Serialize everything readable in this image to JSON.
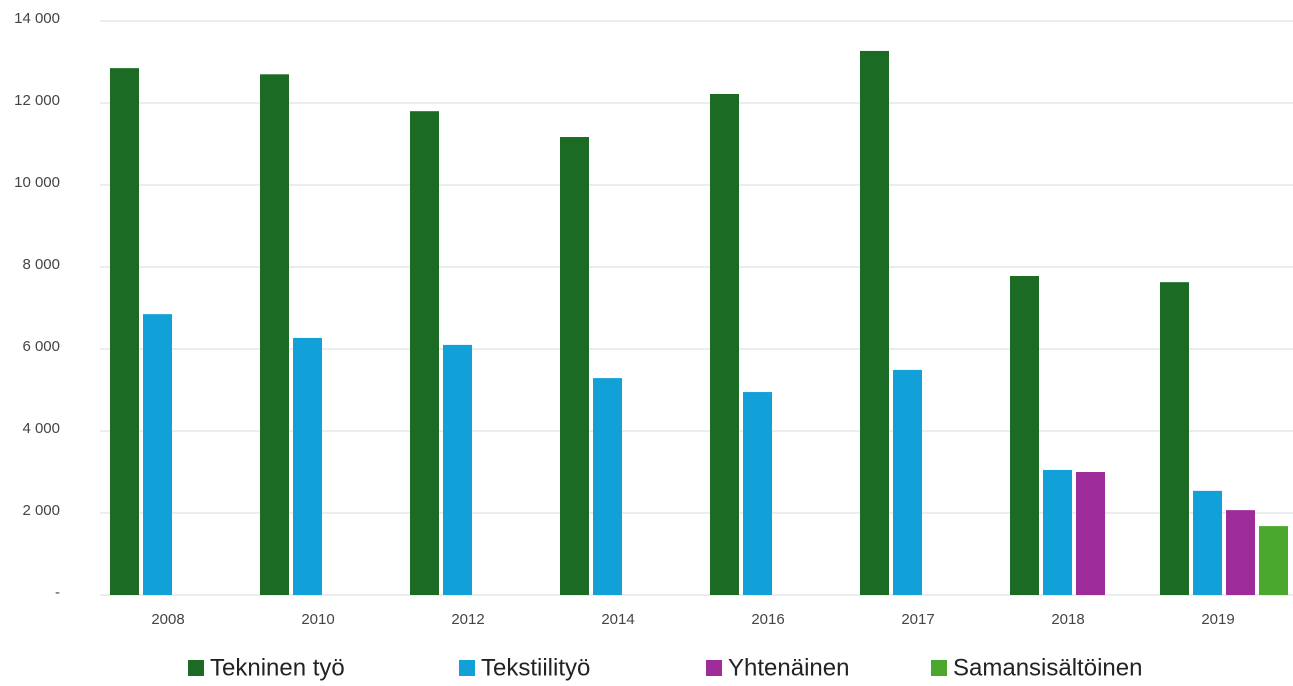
{
  "chart_data": {
    "type": "bar",
    "categories": [
      "2008",
      "2010",
      "2012",
      "2014",
      "2016",
      "2017",
      "2018",
      "2019"
    ],
    "series": [
      {
        "name": "Tekninen työ",
        "color": "#1b6b24",
        "values": [
          12850,
          12700,
          11800,
          11170,
          12220,
          13270,
          7780,
          7630
        ]
      },
      {
        "name": "Tekstiilityö",
        "color": "#12a0d8",
        "values": [
          6850,
          6270,
          6100,
          5290,
          4950,
          5490,
          3050,
          2540
        ]
      },
      {
        "name": "Yhtenäinen",
        "color": "#9e2b9a",
        "values": [
          null,
          null,
          null,
          null,
          null,
          null,
          3000,
          2070
        ]
      },
      {
        "name": "Samansisältöinen",
        "color": "#4aa82e",
        "values": [
          null,
          null,
          null,
          null,
          null,
          null,
          null,
          1680
        ]
      }
    ],
    "ylim": [
      0,
      14000
    ],
    "yticks": [
      {
        "value": 0,
        "label": "-"
      },
      {
        "value": 2000,
        "label": "2 000"
      },
      {
        "value": 4000,
        "label": "4 000"
      },
      {
        "value": 6000,
        "label": "6 000"
      },
      {
        "value": 8000,
        "label": "8 000"
      },
      {
        "value": 10000,
        "label": "10 000"
      },
      {
        "value": 12000,
        "label": "12 000"
      },
      {
        "value": 14000,
        "label": "14 000"
      }
    ],
    "grid": true,
    "legend": "bottom"
  }
}
